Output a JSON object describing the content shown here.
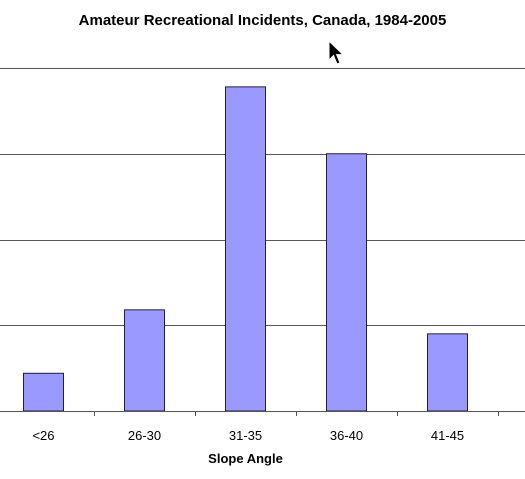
{
  "chart_data": {
    "type": "bar",
    "title": "Amateur Recreational Incidents, Canada, 1984-2005",
    "xlabel": "Slope Angle",
    "ylabel": "",
    "categories": [
      "<26",
      "26-30",
      "31-35",
      "36-40",
      "41-45"
    ],
    "values": [
      4.4,
      11.8,
      37.8,
      30.0,
      9.0
    ],
    "ylim": [
      0,
      40
    ],
    "yticks": [
      0,
      10,
      20,
      30,
      40
    ],
    "grid": true,
    "legend": "none",
    "bar_color": "#9999ff",
    "bar_stroke": "#1f1f3f",
    "grid_color": "#555555"
  },
  "cursor": {
    "icon": "mouse-pointer-icon"
  }
}
